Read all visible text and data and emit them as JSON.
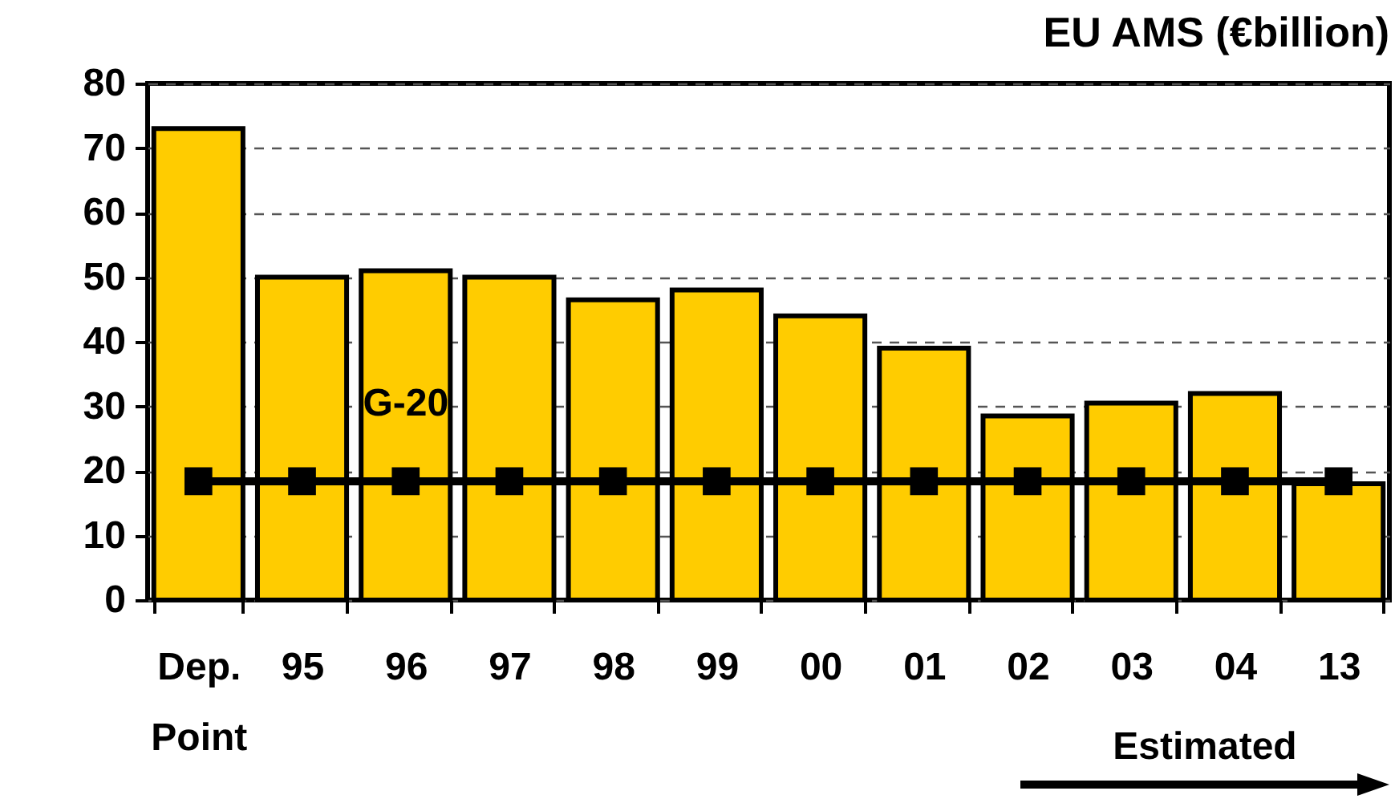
{
  "chart_data": {
    "type": "bar",
    "title": "EU AMS (€billion)",
    "categories": [
      "Dep.\nPoint",
      "95",
      "96",
      "97",
      "98",
      "99",
      "00",
      "01",
      "02",
      "03",
      "04",
      "13"
    ],
    "series": [
      {
        "type": "bar",
        "color": "#ffcc00",
        "values": [
          73,
          50,
          51,
          50,
          46.5,
          48,
          44,
          39,
          28.5,
          30.5,
          32,
          18
        ]
      },
      {
        "type": "line",
        "name": "G-20",
        "color": "#000000",
        "marker": "square",
        "values": [
          18.4,
          18.4,
          18.4,
          18.4,
          18.4,
          18.4,
          18.4,
          18.4,
          18.4,
          18.4,
          18.4,
          18.4
        ]
      }
    ],
    "ylim": [
      0,
      80
    ],
    "yticks": [
      0,
      10,
      20,
      30,
      40,
      50,
      60,
      70,
      80
    ],
    "grid": "y",
    "annotations": [
      "Estimated"
    ]
  }
}
